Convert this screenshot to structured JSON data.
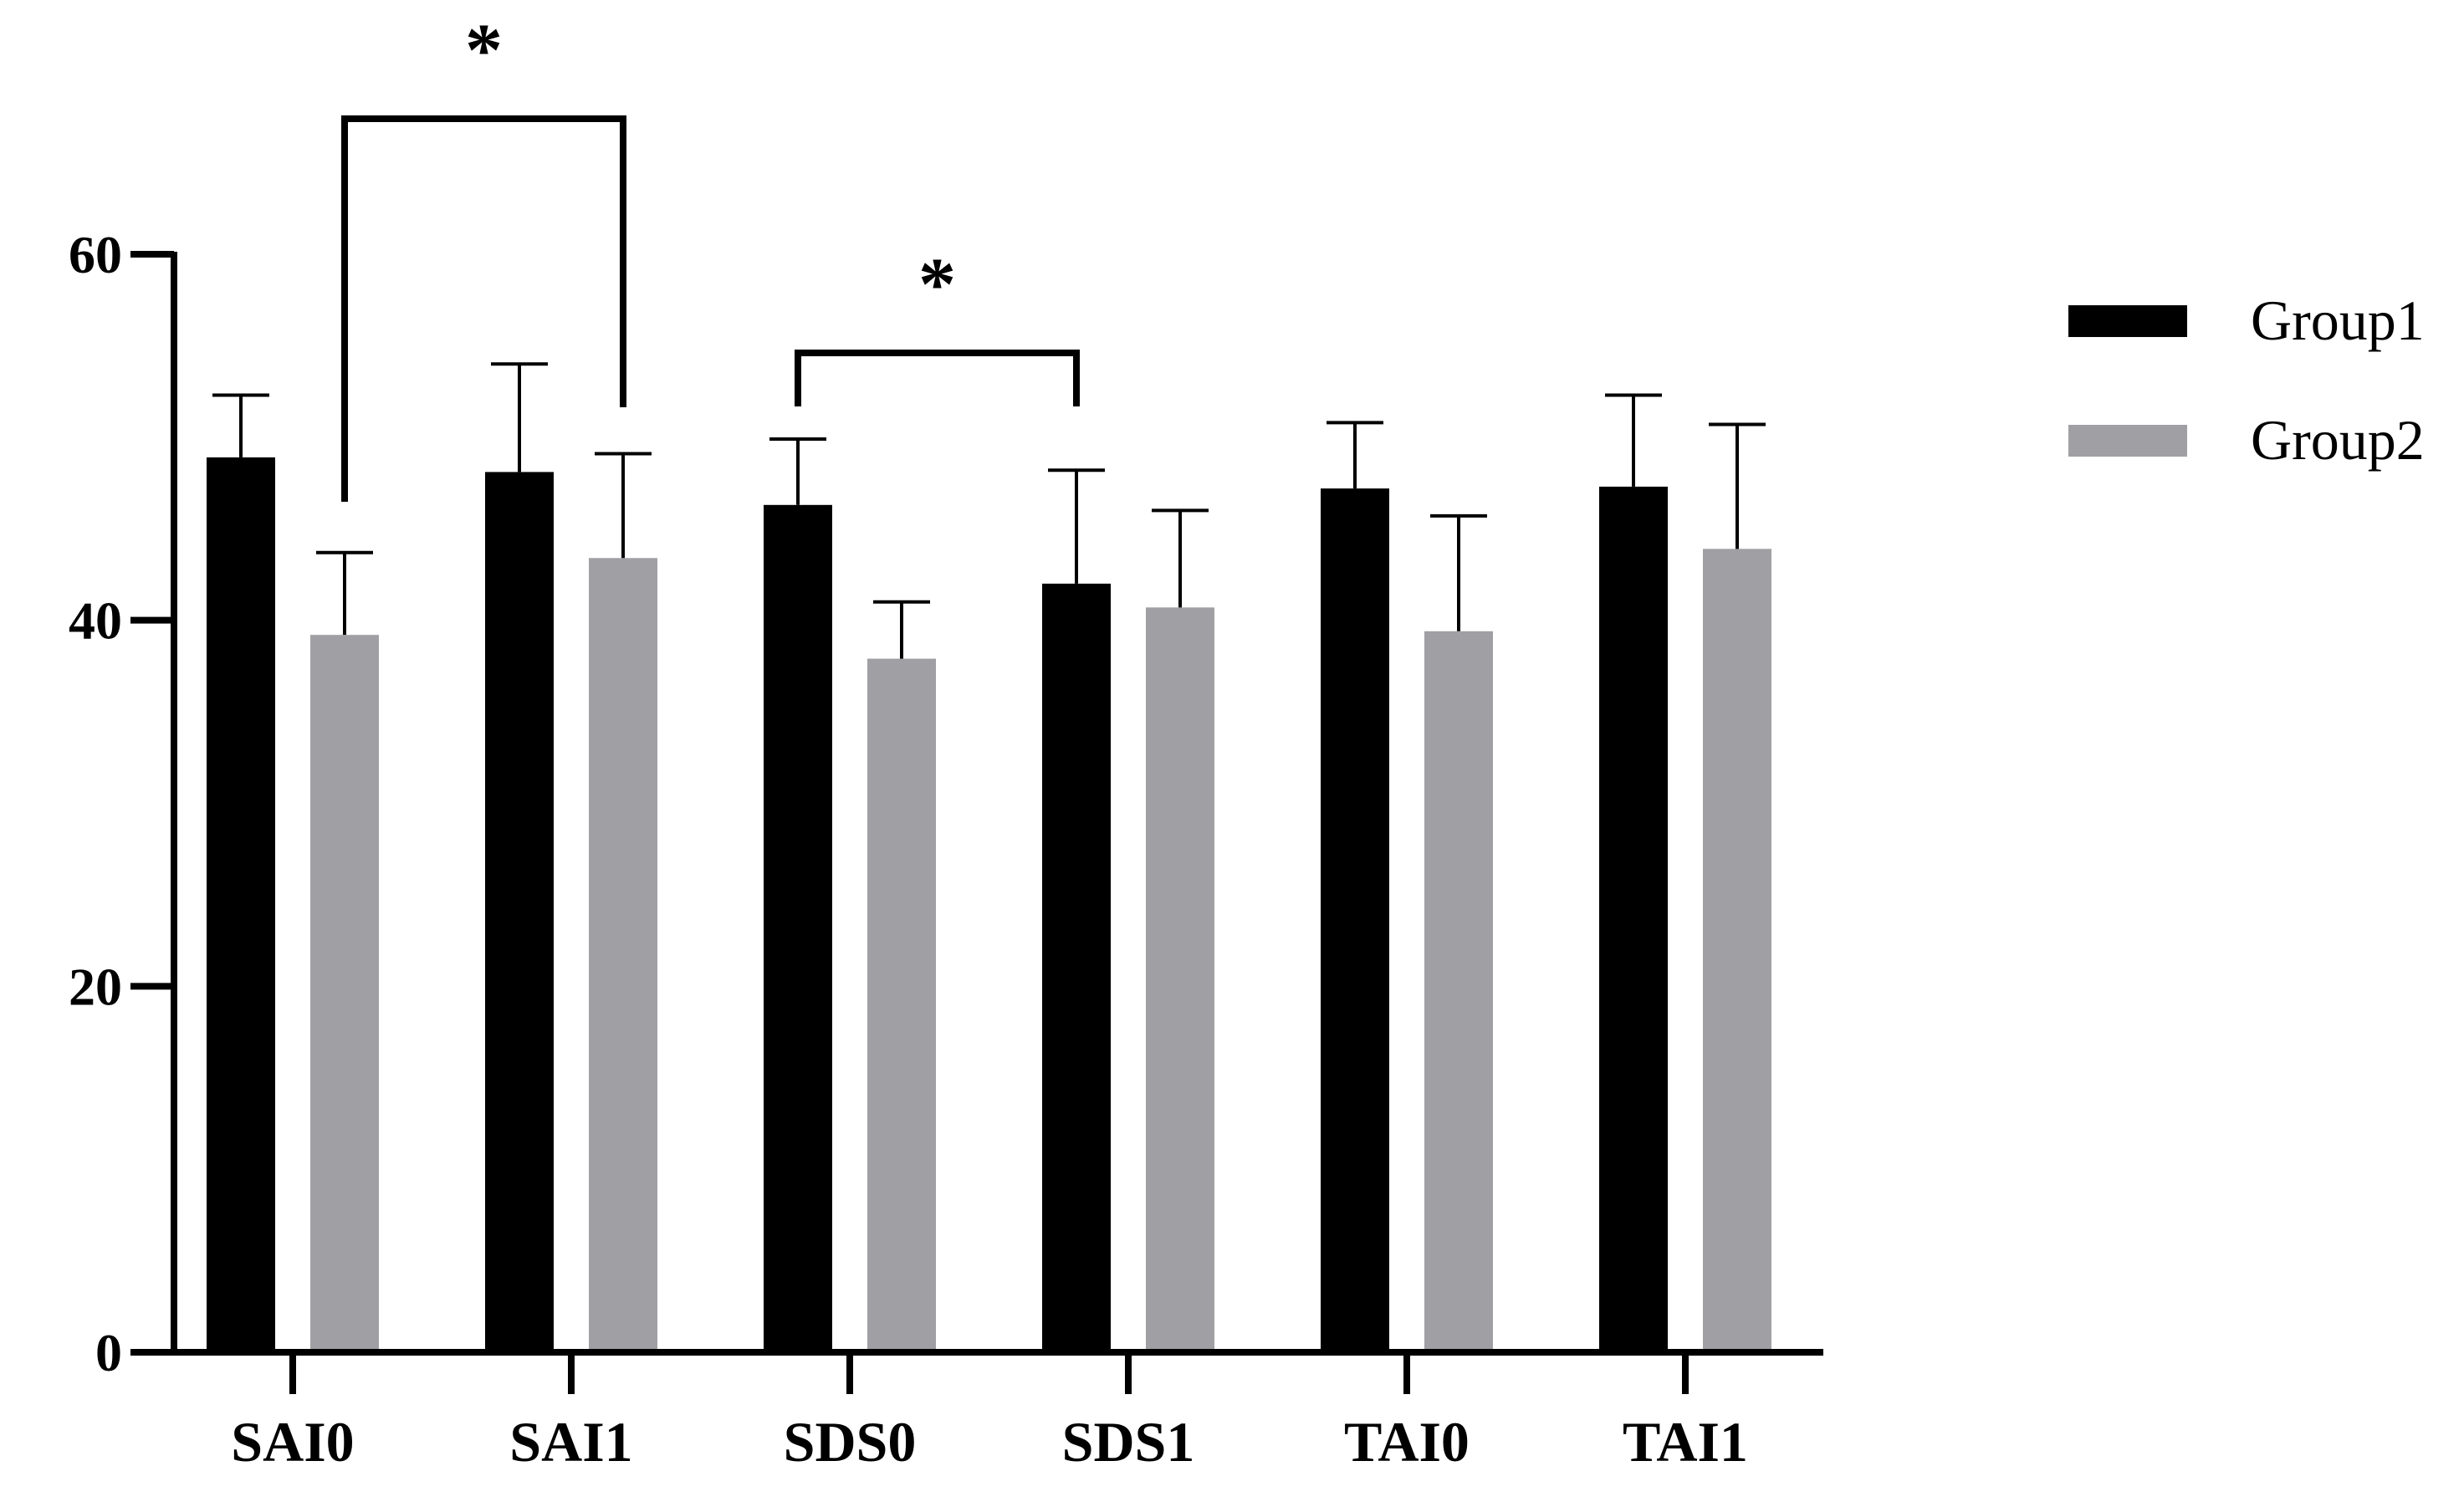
{
  "chart_data": {
    "type": "bar",
    "title": "",
    "xlabel": "",
    "ylabel": "",
    "ylim": [
      0,
      60
    ],
    "yticks": [
      0,
      20,
      40,
      60
    ],
    "categories": [
      "SAI0",
      "SAI1",
      "SDS0",
      "SDS1",
      "TAI0",
      "TAI1"
    ],
    "series": [
      {
        "name": "Group1",
        "color": "#000000",
        "values": [
          48.9,
          48.1,
          46.3,
          42.0,
          47.2,
          47.3
        ],
        "errors": [
          3.4,
          5.9,
          3.6,
          6.2,
          3.6,
          5.0
        ]
      },
      {
        "name": "Group2",
        "color": "#a0a0a4",
        "values": [
          39.2,
          43.4,
          37.9,
          40.7,
          39.4,
          43.9
        ],
        "errors": [
          4.5,
          5.7,
          3.1,
          5.3,
          6.3,
          6.8
        ]
      }
    ],
    "legend": {
      "position": "right"
    },
    "significance": [
      {
        "label": "*",
        "from": {
          "category": "SAI0",
          "series": "Group2"
        },
        "to": {
          "category": "SAI1",
          "series": "Group2"
        }
      },
      {
        "label": "*",
        "from": {
          "category": "SDS0",
          "series": "Group1"
        },
        "to": {
          "category": "SDS1",
          "series": "Group1"
        }
      }
    ]
  }
}
